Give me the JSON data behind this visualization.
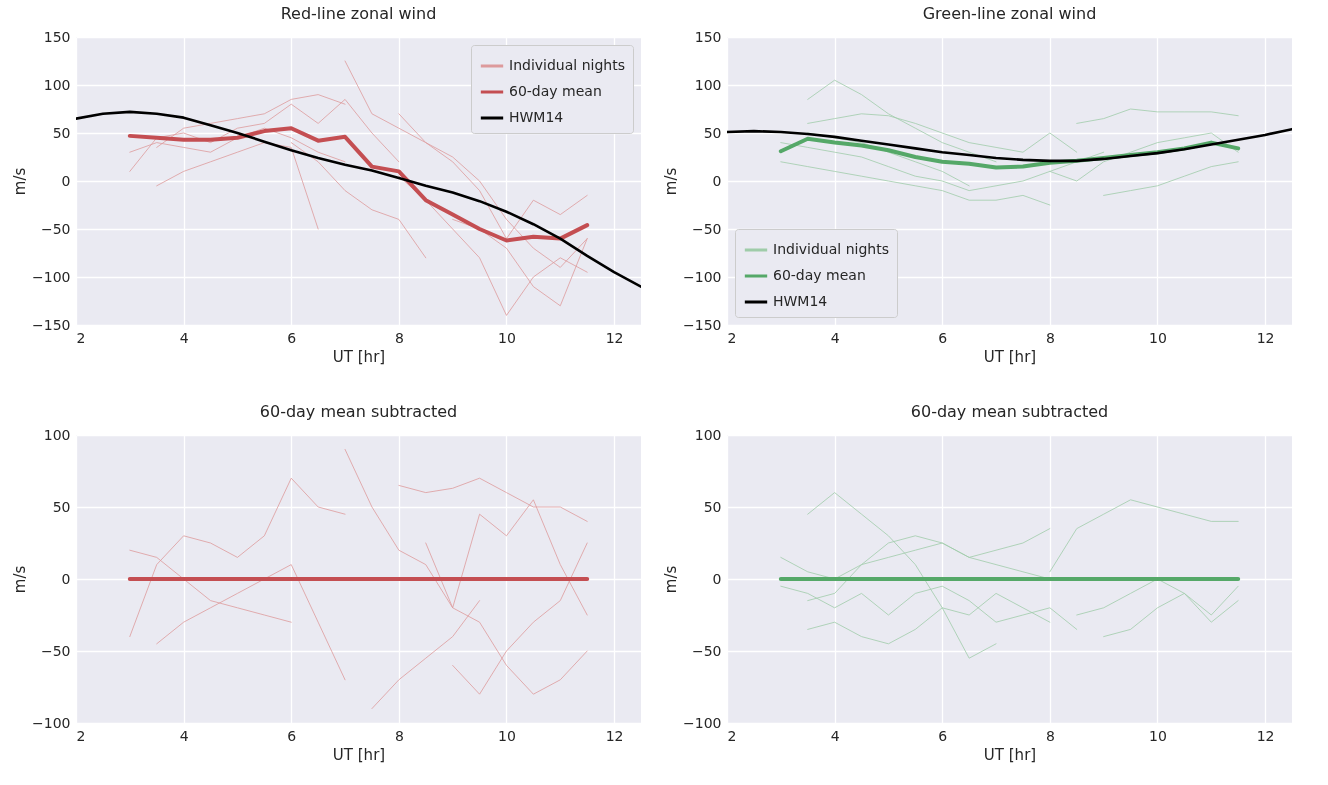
{
  "chart_data": [
    {
      "type": "line",
      "title": "Red-line zonal wind",
      "xlabel": "UT [hr]",
      "ylabel": "m/s",
      "xlim": [
        2,
        12.5
      ],
      "xticks": [
        2,
        4,
        6,
        8,
        10,
        12
      ],
      "ylim": [
        -150,
        150
      ],
      "yticks": [
        -150,
        -100,
        -50,
        0,
        50,
        100,
        150
      ],
      "grid": true,
      "legend": "top right",
      "series": [
        {
          "name": "Individual nights",
          "color": "#dd9a9c",
          "x": [
            3.5,
            4,
            4.5,
            5,
            5.5,
            6,
            6.5,
            7
          ],
          "values": [
            35,
            55,
            60,
            65,
            70,
            85,
            90,
            80
          ]
        },
        {
          "color": "#dd9a9c",
          "x": [
            3,
            3.5,
            4,
            4.5,
            5,
            5.5,
            6,
            6.5,
            7,
            7.5,
            8
          ],
          "values": [
            10,
            45,
            50,
            40,
            55,
            60,
            80,
            60,
            85,
            50,
            20
          ]
        },
        {
          "color": "#dd9a9c",
          "x": [
            3.5,
            4,
            4.5,
            5,
            5.5,
            6,
            6.5
          ],
          "values": [
            -5,
            10,
            20,
            30,
            40,
            35,
            -50
          ]
        },
        {
          "color": "#dd9a9c",
          "x": [
            7,
            7.5,
            8,
            8.5,
            9,
            9.5,
            10,
            10.5,
            11,
            11.5
          ],
          "values": [
            125,
            70,
            55,
            40,
            25,
            0,
            -40,
            -70,
            -90,
            -60
          ]
        },
        {
          "color": "#dd9a9c",
          "x": [
            8,
            8.5,
            9,
            9.5,
            10,
            10.5,
            11,
            11.5
          ],
          "values": [
            5,
            -20,
            -50,
            -80,
            -140,
            -100,
            -80,
            -95
          ]
        },
        {
          "color": "#dd9a9c",
          "x": [
            8,
            8.5,
            9,
            9.5,
            10,
            10.5,
            11,
            11.5
          ],
          "values": [
            70,
            40,
            20,
            -10,
            -60,
            -20,
            -35,
            -15
          ]
        },
        {
          "color": "#dd9a9c",
          "x": [
            9,
            9.5,
            10,
            10.5,
            11,
            11.5
          ],
          "values": [
            -40,
            -50,
            -70,
            -110,
            -130,
            -60
          ]
        },
        {
          "color": "#dd9a9c",
          "x": [
            3,
            3.5,
            4,
            4.5,
            5,
            5.5,
            6,
            6.5,
            7
          ],
          "values": [
            30,
            40,
            35,
            30,
            45,
            55,
            45,
            30,
            20
          ]
        },
        {
          "color": "#dd9a9c",
          "x": [
            6,
            6.5,
            7,
            7.5,
            8,
            8.5
          ],
          "values": [
            40,
            20,
            -10,
            -30,
            -40,
            -80
          ]
        },
        {
          "name": "60-day mean",
          "color": "#c44e52",
          "x": [
            3,
            3.5,
            4,
            4.5,
            5,
            5.5,
            6,
            6.5,
            7,
            7.5,
            8,
            8.5,
            9,
            9.5,
            10,
            10.5,
            11,
            11.5
          ],
          "values": [
            47,
            45,
            43,
            43,
            45,
            52,
            55,
            42,
            46,
            15,
            10,
            -20,
            -35,
            -50,
            -62,
            -58,
            -60,
            -46
          ]
        },
        {
          "name": "HWM14",
          "color": "#000000",
          "x": [
            2,
            2.5,
            3,
            3.5,
            4,
            4.5,
            5,
            5.5,
            6,
            6.5,
            7,
            7.5,
            8,
            8.5,
            9,
            9.5,
            10,
            10.5,
            11,
            11.5,
            12,
            12.5
          ],
          "values": [
            65,
            70,
            72,
            70,
            66,
            58,
            50,
            41,
            32,
            24,
            17,
            11,
            3,
            -5,
            -12,
            -21,
            -32,
            -45,
            -60,
            -78,
            -95,
            -110
          ]
        }
      ]
    },
    {
      "type": "line",
      "title": "Green-line zonal wind",
      "xlabel": "UT [hr]",
      "ylabel": "m/s",
      "xlim": [
        2,
        12.5
      ],
      "xticks": [
        2,
        4,
        6,
        8,
        10,
        12
      ],
      "ylim": [
        -150,
        150
      ],
      "yticks": [
        -150,
        -100,
        -50,
        0,
        50,
        100,
        150
      ],
      "grid": true,
      "legend": "bottom left",
      "series": [
        {
          "name": "Individual nights",
          "color": "#9fcca9",
          "x": [
            3.5,
            4,
            4.5,
            5,
            5.5,
            6,
            6.5,
            7
          ],
          "values": [
            85,
            105,
            90,
            70,
            55,
            40,
            30,
            20
          ]
        },
        {
          "color": "#9fcca9",
          "x": [
            3,
            3.5,
            4,
            4.5,
            5,
            5.5,
            6,
            6.5,
            7,
            7.5,
            8
          ],
          "values": [
            20,
            15,
            10,
            5,
            0,
            -5,
            -10,
            -20,
            -20,
            -15,
            -25
          ]
        },
        {
          "color": "#9fcca9",
          "x": [
            3.5,
            4,
            4.5,
            5,
            5.5,
            6,
            6.5,
            7,
            7.5,
            8,
            8.5
          ],
          "values": [
            60,
            65,
            70,
            68,
            60,
            50,
            40,
            35,
            30,
            50,
            30
          ]
        },
        {
          "color": "#9fcca9",
          "x": [
            8.5,
            9,
            9.5,
            10,
            10.5,
            11,
            11.5
          ],
          "values": [
            60,
            65,
            75,
            72,
            72,
            72,
            68
          ]
        },
        {
          "color": "#9fcca9",
          "x": [
            9,
            9.5,
            10,
            10.5,
            11,
            11.5
          ],
          "values": [
            -15,
            -10,
            -5,
            5,
            15,
            20
          ]
        },
        {
          "color": "#9fcca9",
          "x": [
            3,
            3.5,
            4,
            4.5,
            5,
            5.5,
            6,
            6.5,
            7,
            7.5,
            8,
            8.5,
            9
          ],
          "values": [
            40,
            35,
            30,
            25,
            15,
            5,
            0,
            -10,
            -5,
            0,
            10,
            20,
            30
          ]
        },
        {
          "color": "#9fcca9",
          "x": [
            8,
            8.5,
            9,
            9.5,
            10,
            10.5,
            11,
            11.5
          ],
          "values": [
            10,
            0,
            20,
            30,
            40,
            45,
            50,
            30
          ]
        },
        {
          "color": "#9fcca9",
          "x": [
            3.5,
            4,
            4.5,
            5,
            5.5,
            6,
            6.5
          ],
          "values": [
            50,
            45,
            40,
            30,
            20,
            10,
            -5
          ]
        },
        {
          "name": "60-day mean",
          "color": "#55a868",
          "x": [
            3,
            3.5,
            4,
            4.5,
            5,
            5.5,
            6,
            6.5,
            7,
            7.5,
            8,
            8.5,
            9,
            9.5,
            10,
            10.5,
            11,
            11.5
          ],
          "values": [
            31,
            44,
            40,
            37,
            32,
            25,
            20,
            18,
            14,
            15,
            19,
            21,
            24,
            27,
            30,
            34,
            40,
            34
          ]
        },
        {
          "name": "HWM14",
          "color": "#000000",
          "x": [
            2,
            2.5,
            3,
            3.5,
            4,
            4.5,
            5,
            5.5,
            6,
            6.5,
            7,
            7.5,
            8,
            8.5,
            9,
            9.5,
            10,
            10.5,
            11,
            11.5,
            12,
            12.5
          ],
          "values": [
            51,
            52,
            51,
            49,
            46,
            42,
            38,
            34,
            30,
            27,
            24,
            22,
            21,
            21,
            23,
            26,
            29,
            33,
            38,
            43,
            48,
            54
          ]
        }
      ]
    },
    {
      "type": "line",
      "title": "60-day mean subtracted",
      "xlabel": "UT [hr]",
      "ylabel": "m/s",
      "xlim": [
        2,
        12.5
      ],
      "xticks": [
        2,
        4,
        6,
        8,
        10,
        12
      ],
      "ylim": [
        -100,
        100
      ],
      "yticks": [
        -100,
        -50,
        0,
        50,
        100
      ],
      "grid": true,
      "series": [
        {
          "color": "#dd9a9c",
          "x": [
            3,
            3.5,
            4,
            4.5,
            5,
            5.5,
            6,
            6.5,
            7
          ],
          "values": [
            -40,
            10,
            30,
            25,
            15,
            30,
            70,
            50,
            45
          ]
        },
        {
          "color": "#dd9a9c",
          "x": [
            7,
            7.5,
            8,
            8.5,
            9,
            9.5,
            10,
            10.5,
            11,
            11.5
          ],
          "values": [
            90,
            50,
            20,
            10,
            -20,
            -30,
            -60,
            -80,
            -70,
            -50
          ]
        },
        {
          "color": "#dd9a9c",
          "x": [
            8,
            8.5,
            9,
            9.5,
            10,
            10.5,
            11,
            11.5
          ],
          "values": [
            65,
            60,
            63,
            70,
            60,
            50,
            50,
            40
          ]
        },
        {
          "color": "#dd9a9c",
          "x": [
            7.5,
            8,
            8.5,
            9,
            9.5
          ],
          "values": [
            -90,
            -70,
            -55,
            -40,
            -15
          ]
        },
        {
          "color": "#dd9a9c",
          "x": [
            3.5,
            4,
            4.5,
            5,
            5.5,
            6,
            6.5,
            7
          ],
          "values": [
            -45,
            -30,
            -20,
            -10,
            0,
            10,
            -30,
            -70
          ]
        },
        {
          "color": "#dd9a9c",
          "x": [
            9,
            9.5,
            10,
            10.5,
            11,
            11.5
          ],
          "values": [
            -60,
            -80,
            -50,
            -30,
            -15,
            25
          ]
        },
        {
          "color": "#dd9a9c",
          "x": [
            8.5,
            9,
            9.5,
            10,
            10.5,
            11,
            11.5
          ],
          "values": [
            25,
            -20,
            45,
            30,
            55,
            10,
            -25
          ]
        },
        {
          "color": "#dd9a9c",
          "x": [
            3,
            3.5,
            4,
            4.5,
            5,
            5.5,
            6
          ],
          "values": [
            20,
            15,
            0,
            -15,
            -20,
            -25,
            -30
          ]
        },
        {
          "color": "#c44e52",
          "x": [
            3,
            11.5
          ],
          "values": [
            0,
            0
          ]
        }
      ]
    },
    {
      "type": "line",
      "title": "60-day mean subtracted",
      "xlabel": "UT [hr]",
      "ylabel": "m/s",
      "xlim": [
        2,
        12.5
      ],
      "xticks": [
        2,
        4,
        6,
        8,
        10,
        12
      ],
      "ylim": [
        -100,
        100
      ],
      "yticks": [
        -100,
        -50,
        0,
        50,
        100
      ],
      "grid": true,
      "series": [
        {
          "color": "#9fcca9",
          "x": [
            3.5,
            4,
            4.5,
            5,
            5.5,
            6,
            6.5,
            7,
            7.5,
            8
          ],
          "values": [
            45,
            60,
            45,
            30,
            10,
            -20,
            -25,
            -10,
            -20,
            -30
          ]
        },
        {
          "color": "#9fcca9",
          "x": [
            3.5,
            4,
            4.5,
            5,
            5.5,
            6,
            6.5,
            7
          ],
          "values": [
            -35,
            -30,
            -40,
            -45,
            -35,
            -20,
            -55,
            -45
          ]
        },
        {
          "color": "#9fcca9",
          "x": [
            8,
            8.5,
            9,
            9.5,
            10,
            10.5,
            11,
            11.5
          ],
          "values": [
            5,
            35,
            45,
            55,
            50,
            45,
            40,
            40
          ]
        },
        {
          "color": "#9fcca9",
          "x": [
            3,
            3.5,
            4,
            4.5,
            5,
            5.5,
            6,
            6.5,
            7,
            7.5,
            8
          ],
          "values": [
            15,
            5,
            0,
            10,
            15,
            20,
            25,
            15,
            10,
            5,
            0
          ]
        },
        {
          "color": "#9fcca9",
          "x": [
            9,
            9.5,
            10,
            10.5,
            11,
            11.5
          ],
          "values": [
            -40,
            -35,
            -20,
            -10,
            -30,
            -15
          ]
        },
        {
          "color": "#9fcca9",
          "x": [
            3,
            3.5,
            4,
            4.5,
            5,
            5.5,
            6,
            6.5,
            7,
            7.5,
            8,
            8.5
          ],
          "values": [
            -5,
            -10,
            -20,
            -10,
            -25,
            -10,
            -5,
            -15,
            -30,
            -25,
            -20,
            -35
          ]
        },
        {
          "color": "#9fcca9",
          "x": [
            3.5,
            4,
            4.5,
            5,
            5.5,
            6,
            6.5,
            7,
            7.5,
            8
          ],
          "values": [
            -15,
            -10,
            10,
            25,
            30,
            25,
            15,
            20,
            25,
            35
          ]
        },
        {
          "color": "#9fcca9",
          "x": [
            8.5,
            9,
            9.5,
            10,
            10.5,
            11,
            11.5
          ],
          "values": [
            -25,
            -20,
            -10,
            0,
            -10,
            -25,
            -5
          ]
        },
        {
          "color": "#55a868",
          "x": [
            3,
            11.5
          ],
          "values": [
            0,
            0
          ]
        }
      ]
    }
  ]
}
